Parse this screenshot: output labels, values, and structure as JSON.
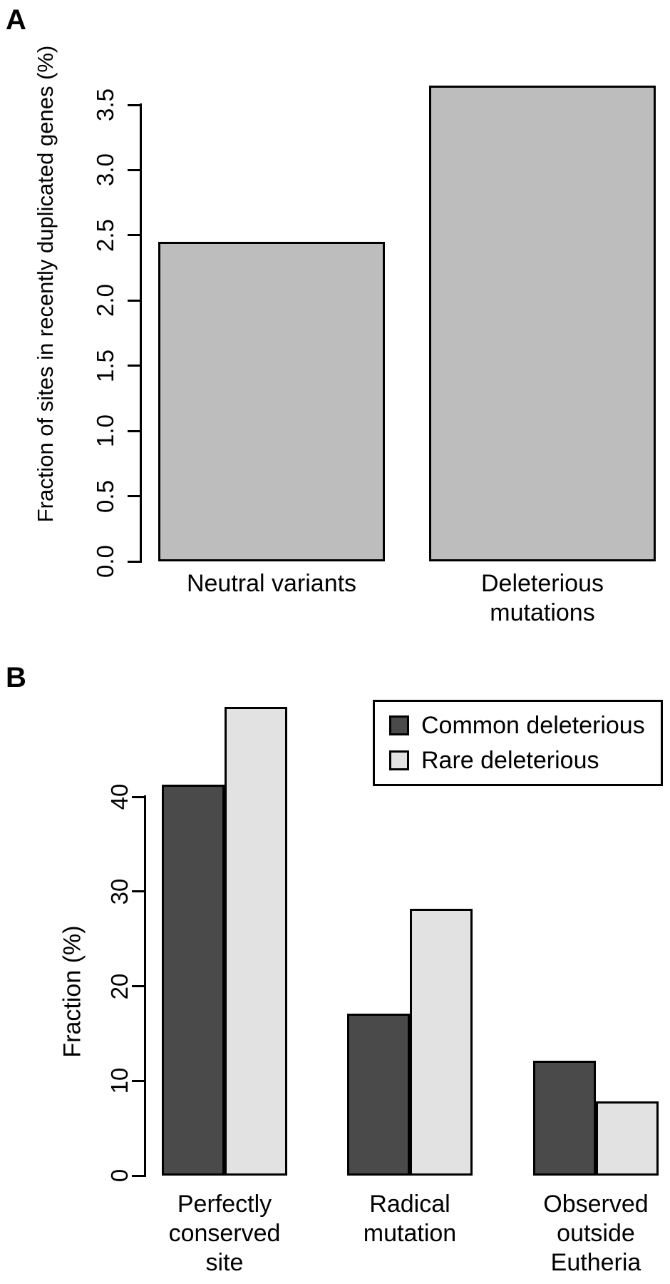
{
  "figure": {
    "background": "#ffffff",
    "text_color": "#000000"
  },
  "chart_data": [
    {
      "id": "panelA",
      "panel_label": "A",
      "type": "bar",
      "title": "",
      "xlabel": "",
      "ylabel": "Fraction of sites in recently duplicated genes (%)",
      "categories": [
        "Neutral variants",
        "Deleterious mutations"
      ],
      "values": [
        2.45,
        3.65
      ],
      "ylim": [
        0,
        3.5
      ],
      "yticks": [
        0.0,
        0.5,
        1.0,
        1.5,
        2.0,
        2.5,
        3.0,
        3.5
      ],
      "ytick_labels": [
        "0.0",
        "0.5",
        "1.0",
        "1.5",
        "2.0",
        "2.5",
        "3.0",
        "3.5"
      ],
      "bar_color": "#bdbdbd",
      "bar_border_color": "#000000",
      "grid": false,
      "legend_position": "none",
      "tick_label_orientation": "rotated-90"
    },
    {
      "id": "panelB",
      "panel_label": "B",
      "type": "bar",
      "title": "",
      "xlabel": "",
      "ylabel": "Fraction (%)",
      "categories": [
        "Perfectly\nconserved\nsite",
        "Radical\nmutation",
        "Observed\noutside\nEutheria"
      ],
      "series": [
        {
          "name": "Common deleterious",
          "color": "#4a4a4a",
          "values": [
            41.3,
            17.1,
            12.1
          ]
        },
        {
          "name": "Rare deleterious",
          "color": "#e2e2e2",
          "values": [
            49.5,
            28.2,
            7.8
          ]
        }
      ],
      "ylim": [
        0,
        40
      ],
      "yticks": [
        0,
        10,
        20,
        30,
        40
      ],
      "ytick_labels": [
        "0",
        "10",
        "20",
        "30",
        "40"
      ],
      "bar_border_color": "#000000",
      "grid": false,
      "legend_position": "top-right",
      "tick_label_orientation": "rotated-90"
    }
  ]
}
